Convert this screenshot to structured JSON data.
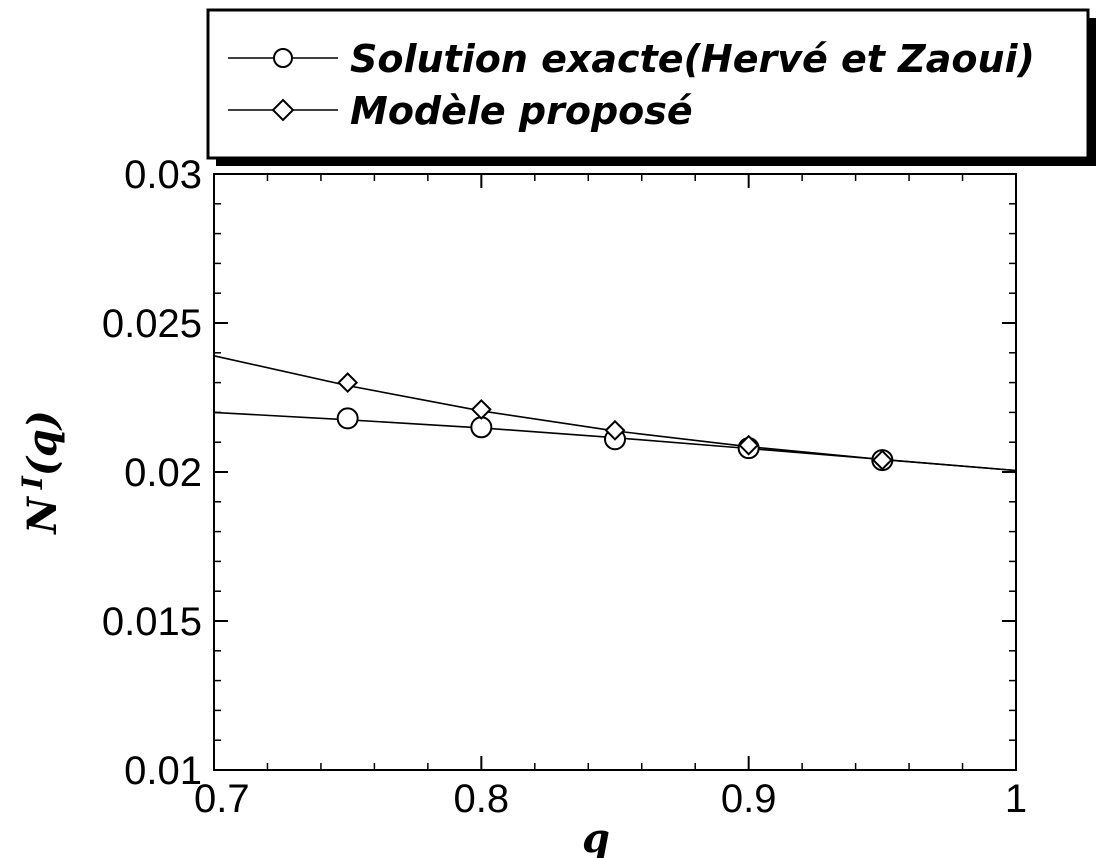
{
  "chart_data": {
    "type": "line",
    "xlabel": "q",
    "ylabel_main": "N",
    "ylabel_sup": "I",
    "ylabel_arg": "(q)",
    "xlim": [
      0.7,
      1.0
    ],
    "ylim": [
      0.01,
      0.03
    ],
    "xticks": [
      0.7,
      0.8,
      0.9,
      1.0
    ],
    "xtick_labels": [
      "0.7",
      "0.8",
      "0.9",
      "1"
    ],
    "yticks": [
      0.01,
      0.015,
      0.02,
      0.025,
      0.03
    ],
    "ytick_labels": [
      "0.01",
      "0.015",
      "0.02",
      "0.025",
      "0.03"
    ],
    "grid": false,
    "legend_position": "top, above plot",
    "series": [
      {
        "name": "Solution exacte(Hervé et Zaoui)",
        "marker": "circle",
        "line": {
          "x": [
            0.7,
            0.75,
            0.8,
            0.85,
            0.9,
            0.95,
            1.0
          ],
          "y": [
            0.022,
            0.02175,
            0.02148,
            0.02115,
            0.02079,
            0.02042,
            0.02005
          ]
        },
        "points": {
          "x": [
            0.75,
            0.8,
            0.85,
            0.9,
            0.95
          ],
          "y": [
            0.0218,
            0.0215,
            0.0211,
            0.0208,
            0.0204
          ]
        }
      },
      {
        "name": "Modèle proposé",
        "marker": "diamond",
        "line": {
          "x": [
            0.7,
            0.75,
            0.8,
            0.85,
            0.9,
            0.95,
            1.0
          ],
          "y": [
            0.0239,
            0.0229,
            0.02205,
            0.02138,
            0.02085,
            0.02042,
            0.02005
          ]
        },
        "points": {
          "x": [
            0.75,
            0.8,
            0.85,
            0.9,
            0.95
          ],
          "y": [
            0.023,
            0.0221,
            0.0214,
            0.0209,
            0.0204
          ]
        }
      }
    ]
  }
}
